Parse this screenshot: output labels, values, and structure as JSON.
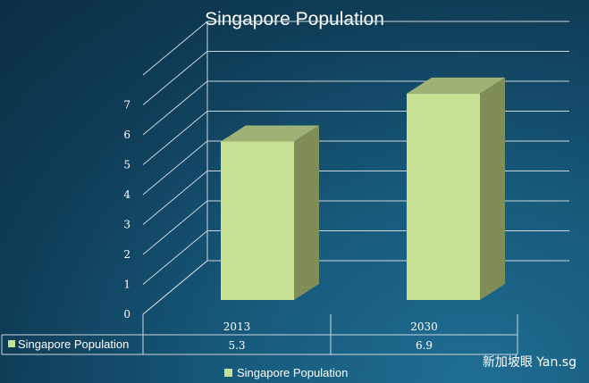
{
  "chart_data": {
    "type": "bar",
    "title": "Singapore Population",
    "categories": [
      "2013",
      "2030"
    ],
    "series": [
      {
        "name": "Singapore Population",
        "values": [
          5.3,
          6.9
        ]
      }
    ],
    "yticks": [
      0,
      1,
      2,
      3,
      4,
      5,
      6,
      7
    ],
    "ylim": [
      0,
      8
    ],
    "xlabel": "",
    "ylabel": "",
    "grid": true,
    "legend": "bottom",
    "data_table": {
      "series_label": "Singapore Population",
      "values": [
        "5.3",
        "6.9"
      ]
    },
    "colors": {
      "bar_front": "#c6e193",
      "bar_side": "#7f8d58",
      "bar_top": "#9db274",
      "grid": "#c9d7df"
    }
  },
  "legend": {
    "label": "Singapore Population"
  },
  "watermark": "新加坡眼 Yan.sg"
}
